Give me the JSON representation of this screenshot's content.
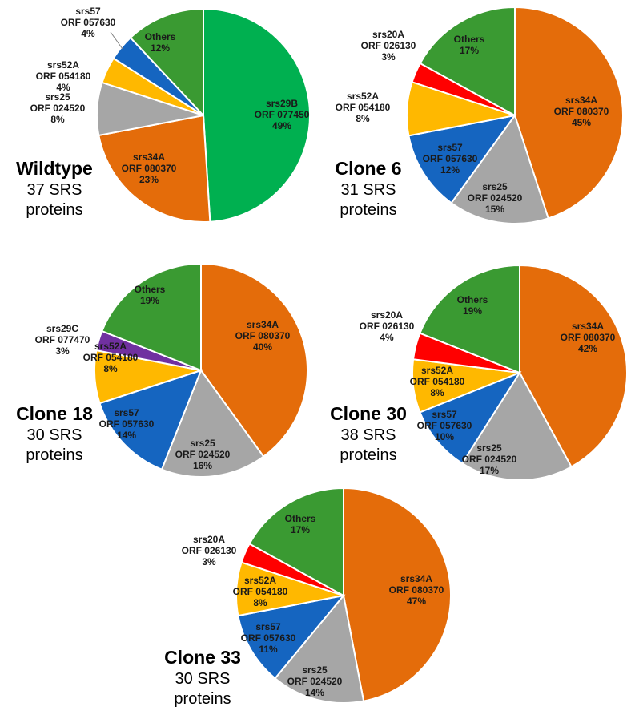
{
  "colors": {
    "green_big": "#00B050",
    "orange": "#E46C0A",
    "gray": "#A6A6A6",
    "yellow": "#FFB800",
    "blue": "#1565C0",
    "red": "#FF0000",
    "purple": "#7030A0",
    "others": "#3A9A32"
  },
  "chart_data": [
    {
      "type": "pie",
      "title": "Wildtype",
      "subtitle_lines": [
        "37 SRS",
        "proteins"
      ],
      "slices": [
        {
          "name": "srs29B",
          "orf": "ORF 077450",
          "pct": "49%",
          "value": 49,
          "color": "green_big"
        },
        {
          "name": "srs34A",
          "orf": "ORF 080370",
          "pct": "23%",
          "value": 23,
          "color": "orange"
        },
        {
          "name": "srs25",
          "orf": "ORF 024520",
          "pct": "8%",
          "value": 8,
          "color": "gray"
        },
        {
          "name": "srs52A",
          "orf": "ORF 054180",
          "pct": "4%",
          "value": 4,
          "color": "yellow"
        },
        {
          "name": "srs57",
          "orf": "ORF 057630",
          "pct": "4%",
          "value": 4,
          "color": "blue"
        },
        {
          "name": "Others",
          "orf": "",
          "pct": "12%",
          "value": 12,
          "color": "others"
        }
      ]
    },
    {
      "type": "pie",
      "title": "Clone 6",
      "subtitle_lines": [
        "31 SRS",
        "proteins"
      ],
      "slices": [
        {
          "name": "srs34A",
          "orf": "ORF 080370",
          "pct": "45%",
          "value": 45,
          "color": "orange"
        },
        {
          "name": "srs25",
          "orf": "ORF 024520",
          "pct": "15%",
          "value": 15,
          "color": "gray"
        },
        {
          "name": "srs57",
          "orf": "ORF 057630",
          "pct": "12%",
          "value": 12,
          "color": "blue"
        },
        {
          "name": "srs52A",
          "orf": "ORF 054180",
          "pct": "8%",
          "value": 8,
          "color": "yellow"
        },
        {
          "name": "srs20A",
          "orf": "ORF 026130",
          "pct": "3%",
          "value": 3,
          "color": "red"
        },
        {
          "name": "Others",
          "orf": "",
          "pct": "17%",
          "value": 17,
          "color": "others"
        }
      ]
    },
    {
      "type": "pie",
      "title": "Clone 18",
      "subtitle_lines": [
        "30 SRS",
        "proteins"
      ],
      "slices": [
        {
          "name": "srs34A",
          "orf": "ORF 080370",
          "pct": "40%",
          "value": 40,
          "color": "orange"
        },
        {
          "name": "srs25",
          "orf": "ORF 024520",
          "pct": "16%",
          "value": 16,
          "color": "gray"
        },
        {
          "name": "srs57",
          "orf": "ORF 057630",
          "pct": "14%",
          "value": 14,
          "color": "blue"
        },
        {
          "name": "srs52A",
          "orf": "ORF 054180",
          "pct": "8%",
          "value": 8,
          "color": "yellow"
        },
        {
          "name": "srs29C",
          "orf": "ORF 077470",
          "pct": "3%",
          "value": 3,
          "color": "purple"
        },
        {
          "name": "Others",
          "orf": "",
          "pct": "19%",
          "value": 19,
          "color": "others"
        }
      ]
    },
    {
      "type": "pie",
      "title": "Clone 30",
      "subtitle_lines": [
        "38 SRS",
        "proteins"
      ],
      "slices": [
        {
          "name": "srs34A",
          "orf": "ORF 080370",
          "pct": "42%",
          "value": 42,
          "color": "orange"
        },
        {
          "name": "srs25",
          "orf": "ORF 024520",
          "pct": "17%",
          "value": 17,
          "color": "gray"
        },
        {
          "name": "srs57",
          "orf": "ORF 057630",
          "pct": "10%",
          "value": 10,
          "color": "blue"
        },
        {
          "name": "srs52A",
          "orf": "ORF 054180",
          "pct": "8%",
          "value": 8,
          "color": "yellow"
        },
        {
          "name": "srs20A",
          "orf": "ORF 026130",
          "pct": "4%",
          "value": 4,
          "color": "red"
        },
        {
          "name": "Others",
          "orf": "",
          "pct": "19%",
          "value": 19,
          "color": "others"
        }
      ]
    },
    {
      "type": "pie",
      "title": "Clone 33",
      "subtitle_lines": [
        "30 SRS",
        "proteins"
      ],
      "slices": [
        {
          "name": "srs34A",
          "orf": "ORF 080370",
          "pct": "47%",
          "value": 47,
          "color": "orange"
        },
        {
          "name": "srs25",
          "orf": "ORF 024520",
          "pct": "14%",
          "value": 14,
          "color": "gray"
        },
        {
          "name": "srs57",
          "orf": "ORF 057630",
          "pct": "11%",
          "value": 11,
          "color": "blue"
        },
        {
          "name": "srs52A",
          "orf": "ORF 054180",
          "pct": "8%",
          "value": 8,
          "color": "yellow"
        },
        {
          "name": "srs20A",
          "orf": "ORF 026130",
          "pct": "3%",
          "value": 3,
          "color": "red"
        },
        {
          "name": "Others",
          "orf": "",
          "pct": "17%",
          "value": 17,
          "color": "others"
        }
      ]
    }
  ]
}
